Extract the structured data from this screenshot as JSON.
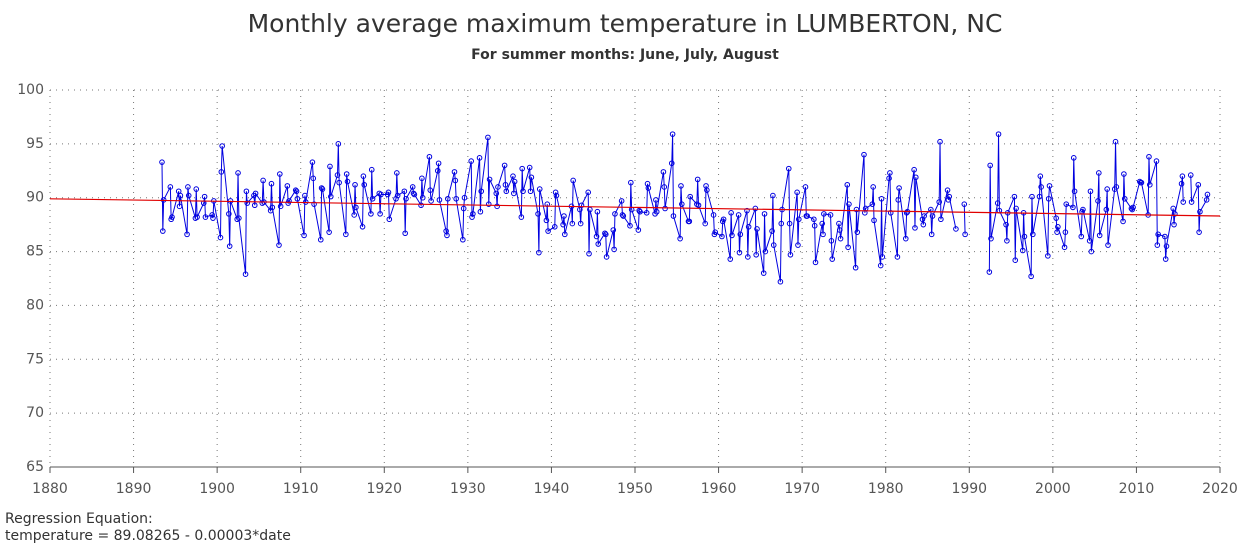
{
  "chart_data": {
    "type": "line",
    "title": "Monthly average maximum temperature in LUMBERTON, NC",
    "subtitle": "For summer months: June, July, August",
    "xlim": [
      1880,
      2020
    ],
    "xticks": [
      1880,
      1890,
      1900,
      1910,
      1920,
      1930,
      1940,
      1950,
      1960,
      1970,
      1980,
      1990,
      2000,
      2010,
      2020
    ],
    "ylim": [
      65,
      100
    ],
    "yticks": [
      65,
      70,
      75,
      80,
      85,
      90,
      95,
      100
    ],
    "grid": true,
    "regression_text": [
      "Regression Equation:",
      "temperature =  89.08265 - 0.00003*date"
    ],
    "regression": {
      "color": "#e00000",
      "x": [
        1880,
        2020
      ],
      "values": [
        89.9,
        88.3
      ]
    },
    "series": [
      {
        "color": "#0000e0",
        "x": [
          1893.4,
          1893.5,
          1893.6,
          1894.4,
          1894.5,
          1894.6,
          1895.4,
          1895.5,
          1895.6,
          1896.4,
          1896.5,
          1896.6,
          1897.4,
          1897.5,
          1897.6,
          1898.4,
          1898.5,
          1898.6,
          1899.4,
          1899.5,
          1899.6,
          1900.4,
          1900.5,
          1900.6,
          1901.4,
          1901.5,
          1901.6,
          1902.4,
          1902.5,
          1902.6,
          1903.4,
          1903.5,
          1903.6,
          1904.4,
          1904.5,
          1904.6,
          1905.4,
          1905.5,
          1905.6,
          1906.4,
          1906.5,
          1906.6,
          1907.4,
          1907.5,
          1907.6,
          1908.4,
          1908.5,
          1908.6,
          1909.4,
          1909.5,
          1909.6,
          1910.4,
          1910.5,
          1910.6,
          1911.4,
          1911.5,
          1911.6,
          1912.4,
          1912.5,
          1912.6,
          1913.4,
          1913.5,
          1913.6,
          1914.4,
          1914.5,
          1914.6,
          1915.4,
          1915.5,
          1915.6,
          1916.4,
          1916.5,
          1916.6,
          1917.4,
          1917.5,
          1917.6,
          1918.4,
          1918.5,
          1918.6,
          1919.4,
          1919.5,
          1919.6,
          1920.4,
          1920.5,
          1920.6,
          1921.4,
          1921.5,
          1921.6,
          1922.4,
          1922.5,
          1922.6,
          1923.4,
          1923.5,
          1923.6,
          1924.4,
          1924.5,
          1924.6,
          1925.4,
          1925.5,
          1925.6,
          1926.4,
          1926.5,
          1926.6,
          1927.4,
          1927.5,
          1927.6,
          1928.4,
          1928.5,
          1928.6,
          1929.4,
          1929.5,
          1929.6,
          1930.4,
          1930.5,
          1930.6,
          1931.4,
          1931.5,
          1931.6,
          1932.4,
          1932.5,
          1932.6,
          1933.4,
          1933.5,
          1933.6,
          1934.4,
          1934.5,
          1934.6,
          1935.4,
          1935.5,
          1935.6,
          1936.4,
          1936.5,
          1936.6,
          1937.4,
          1937.5,
          1937.6,
          1938.4,
          1938.5,
          1938.6,
          1939.4,
          1939.5,
          1939.6,
          1940.4,
          1940.5,
          1940.6,
          1941.4,
          1941.5,
          1941.6,
          1942.4,
          1942.5,
          1942.6,
          1943.4,
          1943.5,
          1943.6,
          1944.4,
          1944.5,
          1944.6,
          1945.4,
          1945.5,
          1945.6,
          1946.4,
          1946.5,
          1946.6,
          1947.4,
          1947.5,
          1947.6,
          1948.4,
          1948.5,
          1948.6,
          1949.4,
          1949.5,
          1949.6,
          1950.4,
          1950.5,
          1950.6,
          1951.4,
          1951.5,
          1951.6,
          1952.4,
          1952.5,
          1952.6,
          1953.4,
          1953.5,
          1953.6,
          1954.4,
          1954.5,
          1954.6,
          1955.4,
          1955.5,
          1955.6,
          1956.4,
          1956.5,
          1956.6,
          1957.4,
          1957.5,
          1957.6,
          1958.4,
          1958.5,
          1958.6,
          1959.4,
          1959.5,
          1959.6,
          1960.4,
          1960.5,
          1960.6,
          1961.4,
          1961.5,
          1961.6,
          1962.4,
          1962.5,
          1962.6,
          1963.4,
          1963.5,
          1963.6,
          1964.4,
          1964.5,
          1964.6,
          1965.4,
          1965.5,
          1965.6,
          1966.4,
          1966.5,
          1966.6,
          1967.4,
          1967.5,
          1967.6,
          1968.4,
          1968.5,
          1968.6,
          1969.4,
          1969.5,
          1969.6,
          1970.4,
          1970.5,
          1970.6,
          1971.4,
          1971.5,
          1971.6,
          1972.4,
          1972.5,
          1972.6,
          1973.4,
          1973.5,
          1973.6,
          1974.4,
          1974.5,
          1974.6,
          1975.4,
          1975.5,
          1975.6,
          1976.4,
          1976.5,
          1976.6,
          1977.4,
          1977.5,
          1977.6,
          1978.4,
          1978.5,
          1978.6,
          1979.4,
          1979.5,
          1979.6,
          1980.4,
          1980.5,
          1980.6,
          1981.4,
          1981.5,
          1981.6,
          1982.4,
          1982.5,
          1982.6,
          1983.4,
          1983.5,
          1983.6,
          1984.4,
          1984.5,
          1984.6,
          1985.4,
          1985.5,
          1985.6,
          1986.4,
          1986.5,
          1986.6,
          1987.4,
          1987.5,
          1987.6,
          1988.4,
          1988.5,
          1988.6,
          1989.4,
          1989.5,
          1989.6,
          1990.4,
          1990.5,
          1990.6,
          1991.4,
          1991.5,
          1991.6,
          1992.4,
          1992.5,
          1992.6,
          1993.4,
          1993.5,
          1993.6,
          1994.4,
          1994.5,
          1994.6,
          1995.4,
          1995.5,
          1995.6,
          1996.4,
          1996.5,
          1996.6,
          1997.4,
          1997.5,
          1997.6,
          1998.4,
          1998.5,
          1998.6,
          1999.4,
          1999.5,
          1999.6,
          2000.4,
          2000.5,
          2000.6,
          2001.4,
          2001.5,
          2001.6,
          2002.4,
          2002.5,
          2002.6,
          2003.4,
          2003.5,
          2003.6,
          2004.4,
          2004.5,
          2004.6,
          2005.4,
          2005.5,
          2005.6,
          2006.4,
          2006.5,
          2006.6,
          2007.4,
          2007.5,
          2007.6,
          2008.4,
          2008.5,
          2008.6,
          2009.4,
          2009.5,
          2009.6,
          2010.4,
          2010.5,
          2010.6,
          2011.4,
          2011.5,
          2011.6,
          2012.4,
          2012.5,
          2012.6,
          2013.4,
          2013.5,
          2013.6,
          2014.4,
          2014.5,
          2014.6,
          2015.4,
          2015.5,
          2015.6,
          2016.4,
          2016.5,
          2016.6,
          2017.4,
          2017.5,
          2017.6,
          2018.4,
          2018.5,
          2018.6
        ],
        "values": [
          93.3,
          86.9,
          89.8,
          91.0,
          88.0,
          88.2,
          90.6,
          89.2,
          90.2,
          86.6,
          91.0,
          90.2,
          88.1,
          90.8,
          88.2,
          89.5,
          90.1,
          88.2,
          88.4,
          88.1,
          89.7,
          86.3,
          92.4,
          94.8,
          88.5,
          85.5,
          89.7,
          88.0,
          92.3,
          88.1,
          82.9,
          90.6,
          89.5,
          90.2,
          89.3,
          90.4,
          89.5,
          91.6,
          89.6,
          88.8,
          91.3,
          89.1,
          85.6,
          92.2,
          89.2,
          91.1,
          89.5,
          89.7,
          90.7,
          90.6,
          89.9,
          86.5,
          90.2,
          89.6,
          93.3,
          91.8,
          89.4,
          86.1,
          90.9,
          90.8,
          86.8,
          92.9,
          90.1,
          92.1,
          95.0,
          91.4,
          86.6,
          92.2,
          91.5,
          88.4,
          91.2,
          89.1,
          87.3,
          92.0,
          91.2,
          88.5,
          92.6,
          89.9,
          90.4,
          88.5,
          90.3,
          90.3,
          90.5,
          88.0,
          89.9,
          92.3,
          90.2,
          90.6,
          86.7,
          89.9,
          91.0,
          90.4,
          90.3,
          89.3,
          91.8,
          90.0,
          93.8,
          90.7,
          89.7,
          92.5,
          93.2,
          89.8,
          86.9,
          86.5,
          89.9,
          92.4,
          91.6,
          89.9,
          86.1,
          89.0,
          90.0,
          93.4,
          88.2,
          88.5,
          93.7,
          88.7,
          90.6,
          95.6,
          89.4,
          91.7,
          90.4,
          89.2,
          91.0,
          93.0,
          91.2,
          90.6,
          92.0,
          90.4,
          91.5,
          88.2,
          92.7,
          90.6,
          92.8,
          90.6,
          91.9,
          88.5,
          84.9,
          90.8,
          87.9,
          89.4,
          86.9,
          87.3,
          90.5,
          90.2,
          87.5,
          88.3,
          86.6,
          89.2,
          87.6,
          91.6,
          88.9,
          87.6,
          89.3,
          90.5,
          84.8,
          88.9,
          86.4,
          88.7,
          85.7,
          86.7,
          86.6,
          84.5,
          87.0,
          85.2,
          88.5,
          89.7,
          88.4,
          88.3,
          87.4,
          91.4,
          88.9,
          87.0,
          88.8,
          88.7,
          88.6,
          91.3,
          90.9,
          88.5,
          89.8,
          88.7,
          92.4,
          91.0,
          89.0,
          93.2,
          95.9,
          88.3,
          86.2,
          91.1,
          89.4,
          87.8,
          87.8,
          90.1,
          89.4,
          91.7,
          89.3,
          87.6,
          91.1,
          90.7,
          88.4,
          86.6,
          86.8,
          86.4,
          87.8,
          88.0,
          84.3,
          88.6,
          86.5,
          88.4,
          84.9,
          86.6,
          88.8,
          84.5,
          87.3,
          89.0,
          84.7,
          87.1,
          83.0,
          88.5,
          85.0,
          86.9,
          90.2,
          85.6,
          82.2,
          87.6,
          88.9,
          92.7,
          87.6,
          84.7,
          90.5,
          85.6,
          88.0,
          91.0,
          88.3,
          88.3,
          88.0,
          87.4,
          84.0,
          87.6,
          86.6,
          88.5,
          88.4,
          86.0,
          84.3,
          87.6,
          87.0,
          86.2,
          91.2,
          85.4,
          89.4,
          83.5,
          88.9,
          86.8,
          94.0,
          88.6,
          89.0,
          89.4,
          91.0,
          87.9,
          83.7,
          89.9,
          84.5,
          91.8,
          92.3,
          88.6,
          84.5,
          89.8,
          90.9,
          86.2,
          88.6,
          88.7,
          92.6,
          87.2,
          91.9,
          88.0,
          87.5,
          88.3,
          88.9,
          86.6,
          88.3,
          89.6,
          95.2,
          88.0,
          90.7,
          89.8,
          90.1,
          87.1,
          null,
          null,
          89.4,
          86.6,
          null,
          null,
          null,
          null,
          null,
          null,
          null,
          83.1,
          93.0,
          86.2,
          89.5,
          95.9,
          88.8,
          87.5,
          86.0,
          88.6,
          90.1,
          84.2,
          89.0,
          85.1,
          88.6,
          86.4,
          82.7,
          90.1,
          86.6,
          90.1,
          92.0,
          91.0,
          84.6,
          89.9,
          91.1,
          88.1,
          86.8,
          87.3,
          85.4,
          86.8,
          89.4,
          89.1,
          93.7,
          90.6,
          86.4,
          88.7,
          88.9,
          86.0,
          90.6,
          85.0,
          89.7,
          92.3,
          86.5,
          88.9,
          90.8,
          85.6,
          90.8,
          95.2,
          91.0,
          87.8,
          92.2,
          89.9,
          89.0,
          88.9,
          89.1,
          91.5,
          91.4,
          91.4,
          88.4,
          93.8,
          91.2,
          93.4,
          85.6,
          86.6,
          86.4,
          84.3,
          85.5,
          89.0,
          87.5,
          88.5,
          91.3,
          92.0,
          89.6,
          null,
          92.1,
          89.6,
          91.2,
          86.8,
          88.7,
          89.8,
          90.3,
          null
        ]
      }
    ]
  }
}
